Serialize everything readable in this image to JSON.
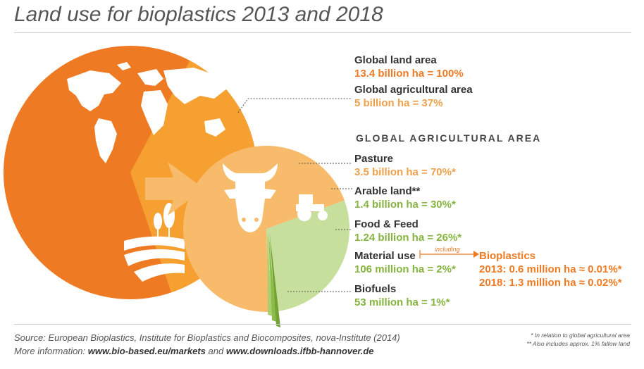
{
  "title": "Land use for bioplastics 2013 and 2018",
  "section_heading": "GLOBAL AGRICULTURAL AREA",
  "labels": {
    "global_land": {
      "name": "Global land area",
      "value": "13.4 billion ha = 100%"
    },
    "global_agri": {
      "name": "Global agricultural area",
      "value": "5 billion ha = 37%"
    },
    "pasture": {
      "name": "Pasture",
      "value": "3.5 billion ha = 70%*"
    },
    "arable": {
      "name": "Arable land**",
      "value": "1.4 billion ha = 30%*"
    },
    "food_feed": {
      "name": "Food & Feed",
      "value": "1.24 billion ha = 26%*"
    },
    "material": {
      "name": "Material use",
      "value": "106 million ha = 2%*"
    },
    "biofuels": {
      "name": "Biofuels",
      "value": "53 million ha = 1%*"
    }
  },
  "including": "including",
  "bioplastics": {
    "name": "Bioplastics",
    "y2013": "2013: 0.6 million ha ≈ 0.01%*",
    "y2018": "2018: 1.3 million ha ≈ 0.02%*"
  },
  "source": {
    "line1": "Source: European Bioplastics, Institute for Bioplastics and Biocomposites, nova-Institute (2014)",
    "more_prefix": "More information: ",
    "link1": "www.bio-based.eu/markets",
    "and": " and ",
    "link2": "www.downloads.ifbb-hannover.de"
  },
  "notes": {
    "n1": "* In relation to global agricultural area",
    "n2": "** Also includes approx. 1% fallow land"
  },
  "colors": {
    "land": "#ee7a23",
    "agri_wedge": "#f5a030",
    "pasture": "#f8bb6c",
    "arable": "#c7df9c",
    "food_feed": "#a9cd6b",
    "material": "#89b843",
    "biofuels": "#6f9e2d"
  },
  "chart_data": [
    {
      "type": "pie",
      "title": "",
      "categories": [
        "Global land area",
        "Global agricultural area"
      ],
      "values": [
        100,
        37
      ],
      "unit": "% of global land area"
    },
    {
      "type": "pie",
      "title": "GLOBAL AGRICULTURAL AREA",
      "categories": [
        "Pasture",
        "Arable land"
      ],
      "values": [
        70,
        30
      ],
      "unit": "% of global agricultural area"
    },
    {
      "type": "bar",
      "title": "",
      "categories": [
        "Food & Feed",
        "Material use",
        "Biofuels"
      ],
      "values": [
        26,
        2,
        1
      ],
      "unit": "% of global agricultural area"
    }
  ]
}
